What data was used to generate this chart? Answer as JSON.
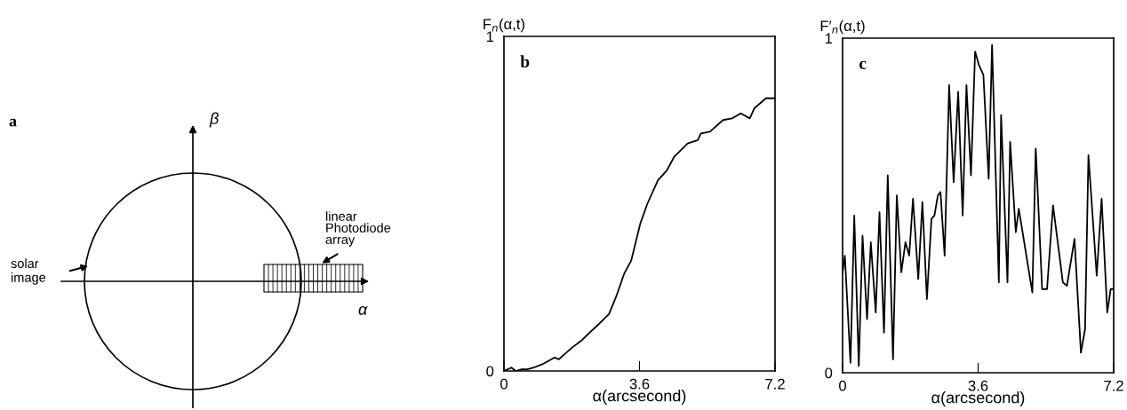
{
  "chart_data": [
    {
      "type": "other",
      "annotations": [
        "a",
        "β",
        "α",
        "linear\nPhotodiode\narray",
        "solar\nimage"
      ]
    },
    {
      "type": "line",
      "ylabel": "F$_{n}$(α,t)",
      "xlabel": "α(arcsecond)",
      "annotations": [
        "b"
      ],
      "xlim": [
        0,
        7.2
      ],
      "ylim": [
        0,
        1
      ],
      "xticks": [
        0,
        3.6,
        7.2
      ],
      "yticks": [
        0,
        1
      ],
      "series": [
        {
          "color": "#000000",
          "x": [
            0,
            0.2,
            0.31,
            0.47,
            0.63,
            0.79,
            1.02,
            1.18,
            1.34,
            1.46,
            1.61,
            1.81,
            2.05,
            2.28,
            2.52,
            2.79,
            2.99,
            3.19,
            3.38,
            3.62,
            3.81,
            4.09,
            4.33,
            4.52,
            4.88,
            5.15,
            5.23,
            5.47,
            5.82,
            6.06,
            6.29,
            6.53,
            6.65,
            6.96,
            7.2
          ],
          "values": [
            0,
            0.01,
            0,
            0.005,
            0.005,
            0.01,
            0.02,
            0.03,
            0.04,
            0.035,
            0.05,
            0.07,
            0.09,
            0.115,
            0.14,
            0.17,
            0.225,
            0.29,
            0.33,
            0.44,
            0.5,
            0.57,
            0.6,
            0.64,
            0.68,
            0.69,
            0.71,
            0.715,
            0.75,
            0.755,
            0.77,
            0.755,
            0.785,
            0.815,
            0.815
          ]
        }
      ]
    },
    {
      "type": "line",
      "ylabel": "F′$_{n}$(α,t)",
      "xlabel": "α(arcsecond)",
      "annotations": [
        "c"
      ],
      "xlim": [
        0,
        7.2
      ],
      "ylim": [
        0,
        1
      ],
      "xticks": [
        0,
        3.6,
        7.2
      ],
      "yticks": [
        0,
        1
      ],
      "series": [
        {
          "color": "#000000",
          "x": [
            0,
            0.06,
            0.21,
            0.31,
            0.43,
            0.53,
            0.65,
            0.75,
            0.88,
            0.98,
            1.1,
            1.2,
            1.34,
            1.44,
            1.56,
            1.67,
            1.77,
            1.87,
            2.01,
            2.12,
            2.24,
            2.36,
            2.44,
            2.53,
            2.6,
            2.71,
            2.83,
            2.95,
            3.07,
            3.19,
            3.29,
            3.41,
            3.52,
            3.62,
            3.74,
            3.88,
            3.97,
            4.15,
            4.21,
            4.38,
            4.45,
            4.6,
            4.68,
            5.04,
            5.13,
            5.3,
            5.43,
            5.59,
            5.85,
            5.96,
            6.16,
            6.33,
            6.44,
            6.53,
            6.75,
            6.88,
            7.03,
            7.12,
            7.2
          ],
          "values": [
            0.3,
            0.35,
            0.03,
            0.47,
            0.02,
            0.41,
            0.16,
            0.39,
            0.18,
            0.48,
            0.12,
            0.59,
            0.04,
            0.53,
            0.3,
            0.39,
            0.35,
            0.52,
            0.28,
            0.51,
            0.22,
            0.46,
            0.47,
            0.53,
            0.54,
            0.35,
            0.86,
            0.57,
            0.84,
            0.47,
            0.86,
            0.59,
            0.96,
            0.92,
            0.89,
            0.58,
            0.98,
            0.27,
            0.77,
            0.27,
            0.69,
            0.42,
            0.49,
            0.24,
            0.67,
            0.25,
            0.25,
            0.5,
            0.27,
            0.26,
            0.4,
            0.06,
            0.13,
            0.65,
            0.29,
            0.52,
            0.18,
            0.25,
            0.25
          ]
        }
      ]
    }
  ]
}
